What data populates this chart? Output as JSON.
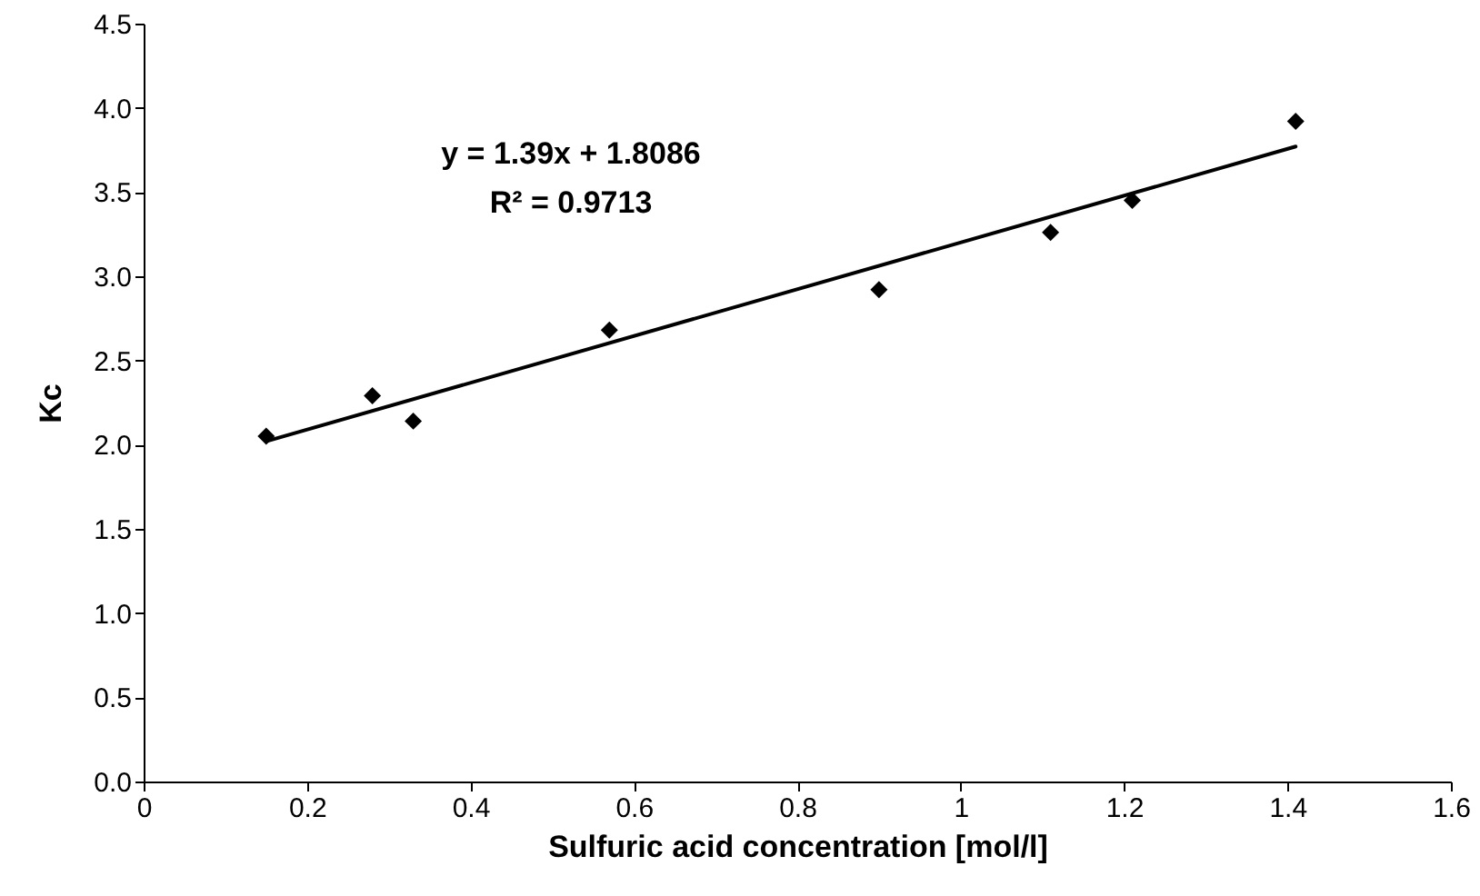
{
  "chart_data": {
    "type": "scatter",
    "xlabel": "Sulfuric acid concentration [mol/l]",
    "ylabel": "Kc",
    "annotations": [
      "y = 1.39x + 1.8086",
      "R² = 0.9713"
    ],
    "x": [
      0.15,
      0.28,
      0.33,
      0.57,
      0.9,
      1.11,
      1.21,
      1.41
    ],
    "series": [
      {
        "color": "#000000",
        "marker": "diamond",
        "values": [
          2.05,
          2.29,
          2.14,
          2.68,
          2.92,
          3.26,
          3.45,
          3.92
        ]
      },
      {
        "type": "line",
        "color": "#000000",
        "x": [
          0.15,
          1.41
        ],
        "values": [
          2.02,
          3.77
        ],
        "line_style": "solid"
      }
    ],
    "xlim": [
      0,
      1.6
    ],
    "xticks": [
      0,
      0.2,
      0.4,
      0.6,
      0.8,
      1,
      1.2,
      1.4,
      1.6
    ],
    "ylim": [
      0,
      4.5
    ],
    "yticks": [
      {
        "value": 0,
        "label": "0.0"
      },
      0.5,
      {
        "value": 1,
        "label": "1.0"
      },
      1.5,
      {
        "value": 2,
        "label": "2.0"
      },
      2.5,
      {
        "value": 3,
        "label": "3.0"
      },
      3.5,
      {
        "value": 4,
        "label": "4.0"
      },
      4.5
    ],
    "grid": false
  }
}
